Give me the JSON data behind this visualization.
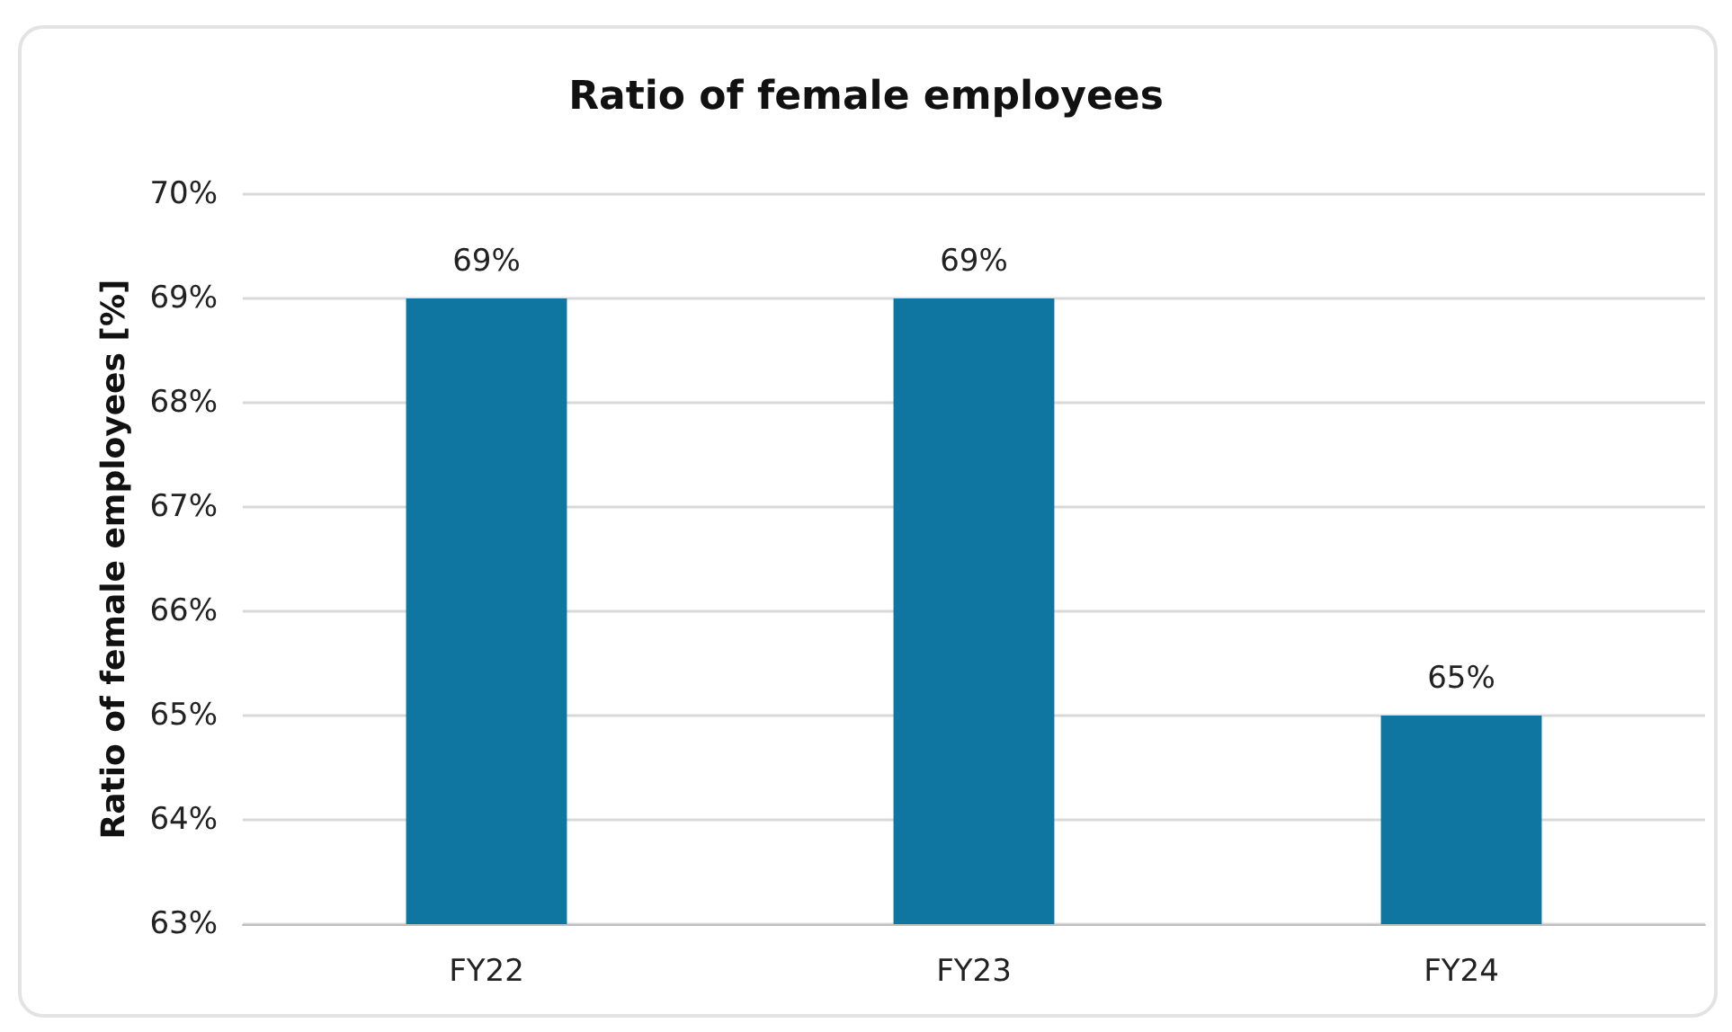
{
  "chart_data": {
    "type": "bar",
    "title": "Ratio of female employees",
    "ylabel": "Ratio of female employees [%]",
    "categories": [
      "FY22",
      "FY23",
      "FY24"
    ],
    "values": [
      69,
      69,
      65
    ],
    "color": "#0e76a0",
    "value_labels": [
      "69%",
      "69%",
      "65%"
    ],
    "ylim": [
      63,
      70
    ],
    "yticks": [
      {
        "value": 63,
        "label": "63%"
      },
      {
        "value": 64,
        "label": "64%"
      },
      {
        "value": 65,
        "label": "65%"
      },
      {
        "value": 66,
        "label": "66%"
      },
      {
        "value": 67,
        "label": "67%"
      },
      {
        "value": 68,
        "label": "68%"
      },
      {
        "value": 69,
        "label": "69%"
      },
      {
        "value": 70,
        "label": "70%"
      }
    ],
    "grid": "y"
  }
}
